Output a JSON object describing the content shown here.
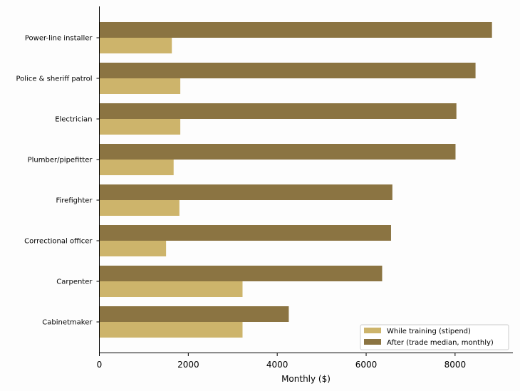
{
  "chart_data": {
    "type": "bar",
    "orientation": "horizontal",
    "categories": [
      "Power-line installer",
      "Police & sheriff patrol",
      "Electrician",
      "Plumber/pipefitter",
      "Firefighter",
      "Correctional officer",
      "Carpenter",
      "Cabinetmaker"
    ],
    "series": [
      {
        "name": "While training (stipend)",
        "color": "#cdb46b",
        "values": [
          1630,
          1820,
          1820,
          1670,
          1800,
          1500,
          3220,
          3220
        ]
      },
      {
        "name": "After (trade median, monthly)",
        "color": "#8b7442",
        "values": [
          8830,
          8460,
          8030,
          8010,
          6590,
          6560,
          6360,
          4260
        ]
      }
    ],
    "title": "",
    "xlabel": "Monthly ($)",
    "ylabel": "",
    "xlim": [
      0,
      9300
    ],
    "xticks": [
      0,
      2000,
      4000,
      6000,
      8000
    ],
    "grid": false,
    "legend_position": "bottom-right"
  }
}
